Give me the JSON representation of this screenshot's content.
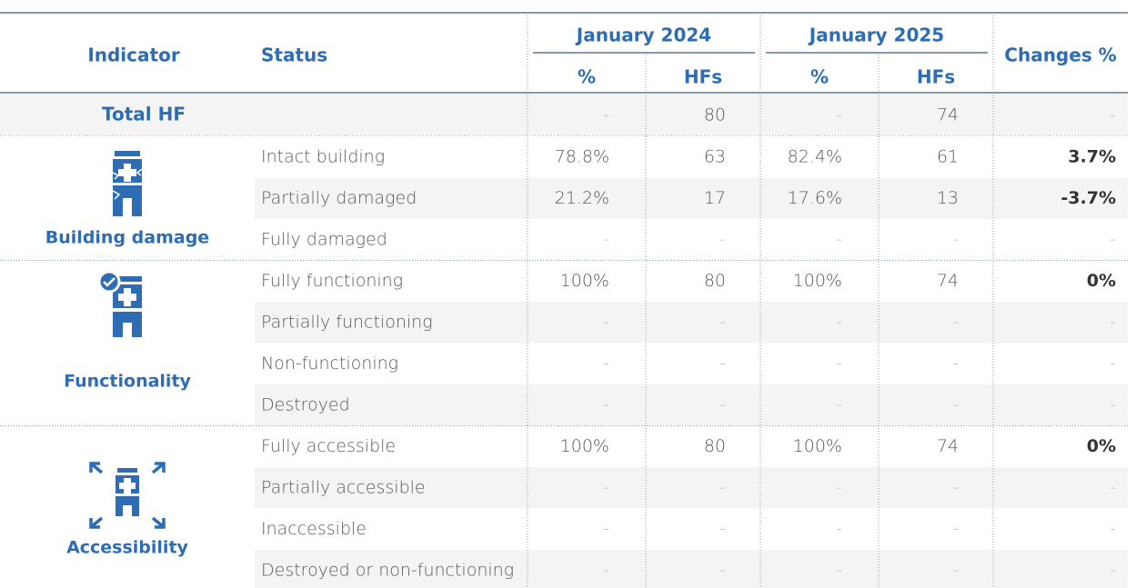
{
  "header": {
    "indicator": "Indicator",
    "status": "Status",
    "periods": [
      {
        "label": "January 2024",
        "columns": [
          "%",
          "HFs"
        ]
      },
      {
        "label": "January 2025",
        "columns": [
          "%",
          "HFs"
        ]
      }
    ],
    "changes": "Changes %"
  },
  "total": {
    "label": "Total HF",
    "values": [
      "-",
      "80",
      "-",
      "74",
      "-"
    ]
  },
  "groups": [
    {
      "label": "Building damage",
      "rows": [
        {
          "status": "Intact building",
          "values": [
            "78.8%",
            "63",
            "82.4%",
            "61",
            "3.7%"
          ]
        },
        {
          "status": "Partially damaged",
          "values": [
            "21.2%",
            "17",
            "17.6%",
            "13",
            "-3.7%"
          ]
        },
        {
          "status": "Fully damaged",
          "values": [
            "-",
            "-",
            "-",
            "-",
            "-"
          ]
        }
      ]
    },
    {
      "label": "Functionality",
      "rows": [
        {
          "status": "Fully functioning",
          "values": [
            "100%",
            "80",
            "100%",
            "74",
            "0%"
          ]
        },
        {
          "status": "Partially functioning",
          "values": [
            "-",
            "-",
            "-",
            "-",
            "-"
          ]
        },
        {
          "status": "Non-functioning",
          "values": [
            "-",
            "-",
            "-",
            "-",
            "-"
          ]
        },
        {
          "status": "Destroyed",
          "values": [
            "-",
            "-",
            "-",
            "-",
            "-"
          ]
        }
      ]
    },
    {
      "label": "Accessibility",
      "rows": [
        {
          "status": "Fully accessible",
          "values": [
            "100%",
            "80",
            "100%",
            "74",
            "0%"
          ]
        },
        {
          "status": "Partially accessible",
          "values": [
            "-",
            "-",
            "-",
            "-",
            "-"
          ]
        },
        {
          "status": "Inaccessible",
          "values": [
            "-",
            "-",
            "-",
            "-",
            "-"
          ]
        },
        {
          "status": "Destroyed or non-functioning",
          "values": [
            "-",
            "-",
            "-",
            "-",
            "-"
          ]
        }
      ]
    }
  ]
}
